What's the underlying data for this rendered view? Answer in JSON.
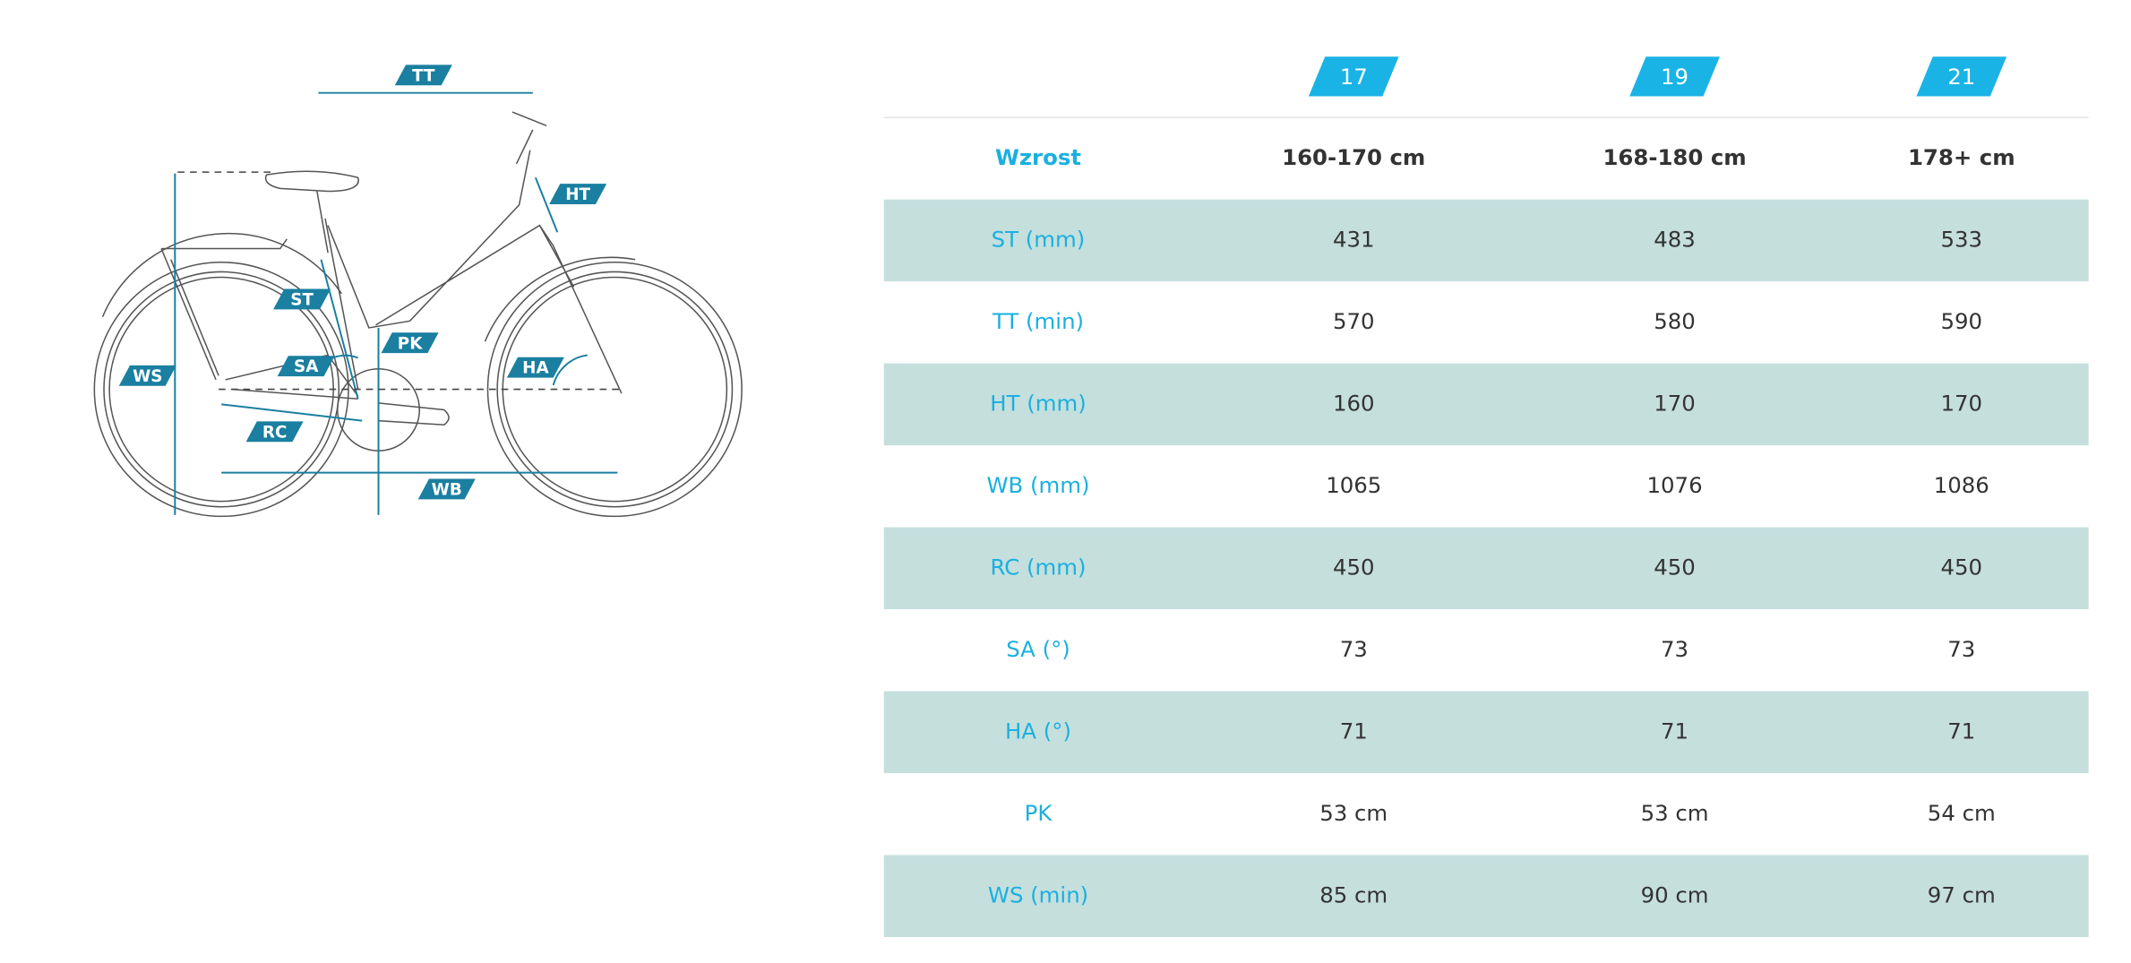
{
  "diagram": {
    "labels": [
      "TT",
      "HT",
      "ST",
      "PK",
      "SA",
      "HA",
      "WS",
      "RC",
      "WB"
    ]
  },
  "table": {
    "header": [
      "17",
      "19",
      "21"
    ],
    "rows": [
      [
        "Wzrost",
        "160-170 cm",
        "168-180 cm",
        "178+ cm"
      ],
      [
        "ST (mm)",
        "431",
        "483",
        "533"
      ],
      [
        "TT (min)",
        "570",
        "580",
        "590"
      ],
      [
        "HT (mm)",
        "160",
        "170",
        "170"
      ],
      [
        "WB (mm)",
        "1065",
        "1076",
        "1086"
      ],
      [
        "RC (mm)",
        "450",
        "450",
        "450"
      ],
      [
        "SA (°)",
        "73",
        "73",
        "73"
      ],
      [
        "HA (°)",
        "71",
        "71",
        "71"
      ],
      [
        "PK",
        "53 cm",
        "53 cm",
        "54 cm"
      ],
      [
        "WS (min)",
        "85 cm",
        "90 cm",
        "97 cm"
      ]
    ]
  }
}
